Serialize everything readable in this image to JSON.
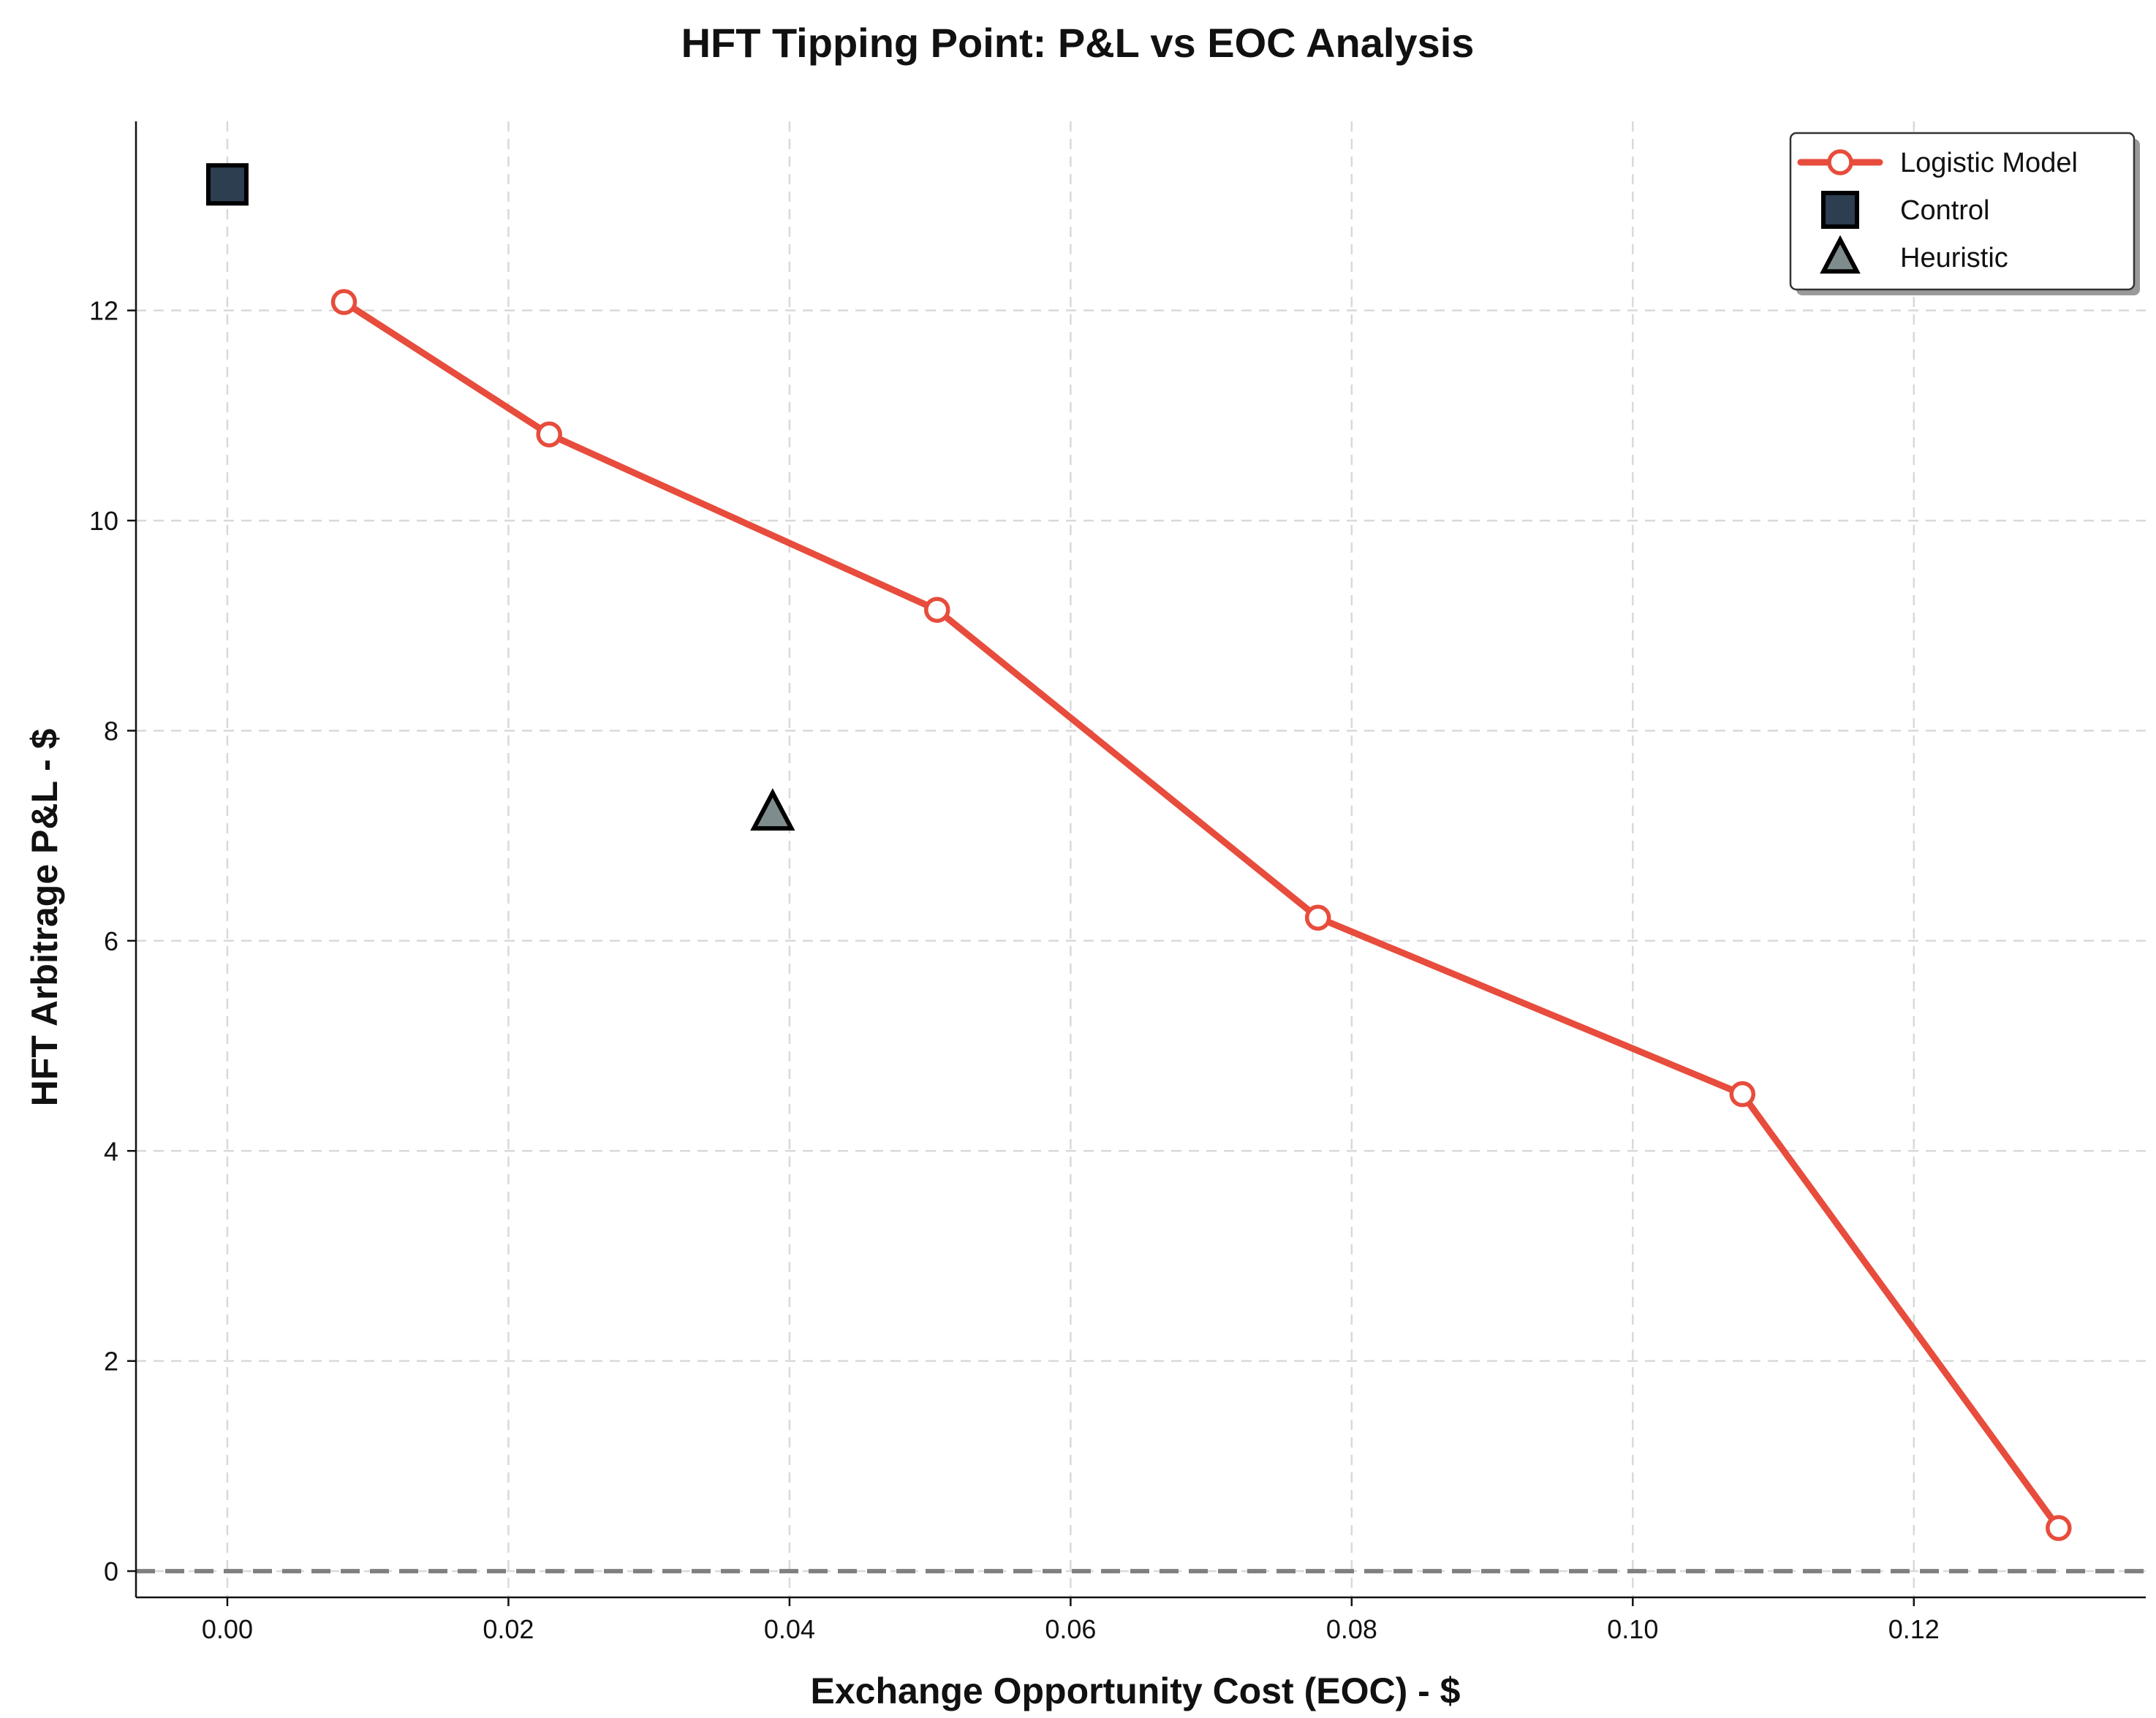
{
  "chart_data": {
    "type": "line",
    "title": "HFT Tipping Point: P&L vs EOC Analysis",
    "xlabel": "Exchange Opportunity Cost (EOC) - $",
    "ylabel": "HFT Arbitrage P&L - $",
    "xlim": [
      -0.0065,
      0.1365
    ],
    "ylim": [
      -0.25,
      13.8
    ],
    "xticks": [
      0.0,
      0.02,
      0.04,
      0.06,
      0.08,
      0.1,
      0.12
    ],
    "xtick_labels": [
      "0.00",
      "0.02",
      "0.04",
      "0.06",
      "0.08",
      "0.10",
      "0.12"
    ],
    "yticks": [
      0,
      2,
      4,
      6,
      8,
      10,
      12
    ],
    "ytick_labels": [
      "0",
      "2",
      "4",
      "6",
      "8",
      "10",
      "12"
    ],
    "grid": true,
    "reference_line": {
      "y": 0,
      "style": "dashed",
      "color": "#808080"
    },
    "legend_position": "top-right",
    "series": [
      {
        "name": "Logistic Model",
        "kind": "line",
        "marker": "circle",
        "color": "#e74c3c",
        "x": [
          0.0083,
          0.0229,
          0.0505,
          0.0776,
          0.1078,
          0.1303
        ],
        "y": [
          12.08,
          10.82,
          9.15,
          6.22,
          4.54,
          0.41
        ]
      },
      {
        "name": "Control",
        "kind": "scatter",
        "marker": "square",
        "color": "#2c3e50",
        "x": [
          0.0
        ],
        "y": [
          13.2
        ]
      },
      {
        "name": "Heuristic",
        "kind": "scatter",
        "marker": "triangle",
        "color": "#7f8c8d",
        "x": [
          0.0388
        ],
        "y": [
          7.22
        ]
      }
    ]
  }
}
